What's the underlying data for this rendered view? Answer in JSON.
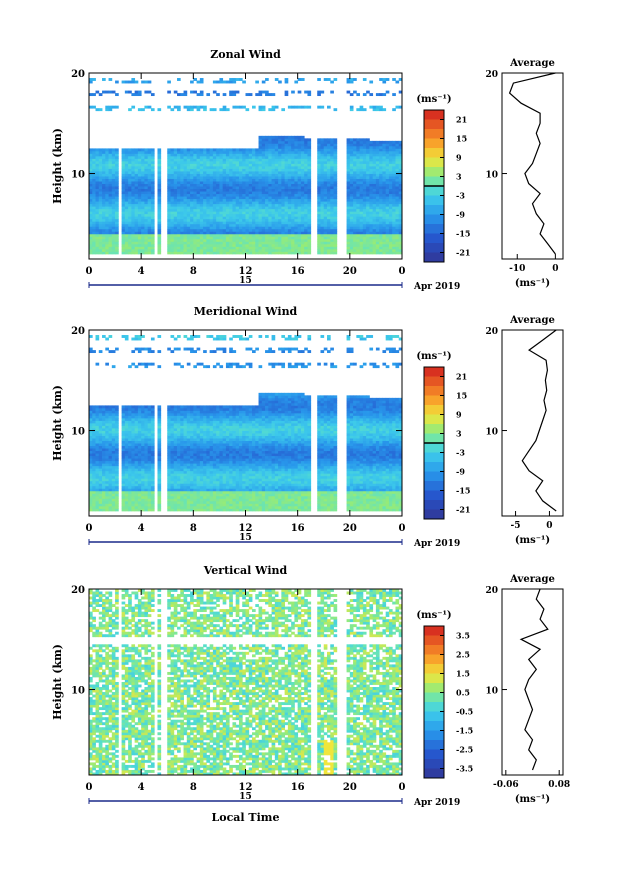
{
  "chart_data": [
    {
      "type": "heatmap",
      "title": "Zonal Wind",
      "ylabel": "Height (km)",
      "xlabel": "",
      "xticks": [
        "0",
        "4",
        "8",
        "12",
        "16",
        "20",
        "0"
      ],
      "yticks": [
        "20",
        "10"
      ],
      "date_labels": [
        "15",
        "Apr 2019"
      ],
      "xlim": [
        0,
        24
      ],
      "ylim": [
        1.5,
        20
      ],
      "colorbar": {
        "unit_label": "(ms⁻¹)",
        "ticks": [
          "21",
          "15",
          "9",
          "3",
          "-3",
          "-9",
          "-15",
          "-21"
        ],
        "range": [
          -24,
          24
        ]
      },
      "profile": {
        "title": "Average",
        "xlabel": "(ms⁻¹)",
        "xticks": [
          "-10",
          "0"
        ],
        "xlim": [
          -14,
          2
        ],
        "yticks": [
          "20",
          "10"
        ],
        "z": [
          2,
          3,
          4,
          5,
          6,
          7,
          8,
          9,
          10,
          11,
          12,
          13,
          14,
          15,
          16,
          17,
          18,
          19,
          20
        ],
        "values": [
          0,
          -2,
          -4,
          -3,
          -5,
          -6,
          -4,
          -7,
          -8,
          -6,
          -5,
          -4,
          -5,
          -4,
          -4,
          -9,
          -12,
          -11,
          0
        ]
      }
    },
    {
      "type": "heatmap",
      "title": "Meridional Wind",
      "ylabel": "Height (km)",
      "xlabel": "",
      "xticks": [
        "0",
        "4",
        "8",
        "12",
        "16",
        "20",
        "0"
      ],
      "yticks": [
        "20",
        "10"
      ],
      "date_labels": [
        "15",
        "Apr 2019"
      ],
      "xlim": [
        0,
        24
      ],
      "ylim": [
        1.5,
        20
      ],
      "colorbar": {
        "unit_label": "(ms⁻¹)",
        "ticks": [
          "21",
          "15",
          "9",
          "3",
          "-3",
          "-9",
          "-15",
          "-21"
        ],
        "range": [
          -24,
          24
        ]
      },
      "profile": {
        "title": "Average",
        "xlabel": "(ms⁻¹)",
        "xticks": [
          "-5",
          "0"
        ],
        "xlim": [
          -7,
          2
        ],
        "yticks": [
          "20",
          "10"
        ],
        "z": [
          2,
          3,
          4,
          5,
          6,
          7,
          8,
          9,
          10,
          11,
          12,
          13,
          14,
          15,
          16,
          17,
          18,
          19,
          20
        ],
        "values": [
          1,
          -1,
          -2,
          -1,
          -3,
          -4,
          -3,
          -2,
          -1.5,
          -1,
          -0.5,
          -0.8,
          -0.4,
          -0.6,
          -0.3,
          -0.5,
          -3,
          -1,
          1
        ]
      }
    },
    {
      "type": "heatmap",
      "title": "Vertical Wind",
      "ylabel": "Height (km)",
      "xlabel": "Local Time",
      "xticks": [
        "0",
        "4",
        "8",
        "12",
        "16",
        "20",
        "0"
      ],
      "yticks": [
        "20",
        "10"
      ],
      "date_labels": [
        "15",
        "Apr 2019"
      ],
      "xlim": [
        0,
        24
      ],
      "ylim": [
        1.5,
        20
      ],
      "colorbar": {
        "unit_label": "(ms⁻¹)",
        "ticks": [
          "3.5",
          "2.5",
          "1.5",
          "0.5",
          "-0.5",
          "-1.5",
          "-2.5",
          "-3.5"
        ],
        "range": [
          -4,
          4
        ]
      },
      "profile": {
        "title": "Average",
        "xlabel": "(ms⁻¹)",
        "xticks": [
          "-0.06",
          "0.08"
        ],
        "xlim": [
          -0.07,
          0.09
        ],
        "yticks": [
          "20",
          "10"
        ],
        "z": [
          2,
          3,
          4,
          5,
          6,
          7,
          8,
          9,
          10,
          11,
          12,
          13,
          14,
          15,
          16,
          17,
          18,
          19,
          20
        ],
        "values": [
          0.01,
          0.02,
          0.0,
          0.01,
          -0.01,
          0.0,
          0.01,
          0.0,
          -0.01,
          0.0,
          0.02,
          0.0,
          0.03,
          -0.02,
          0.05,
          0.03,
          0.04,
          0.02,
          0.03
        ]
      }
    }
  ]
}
